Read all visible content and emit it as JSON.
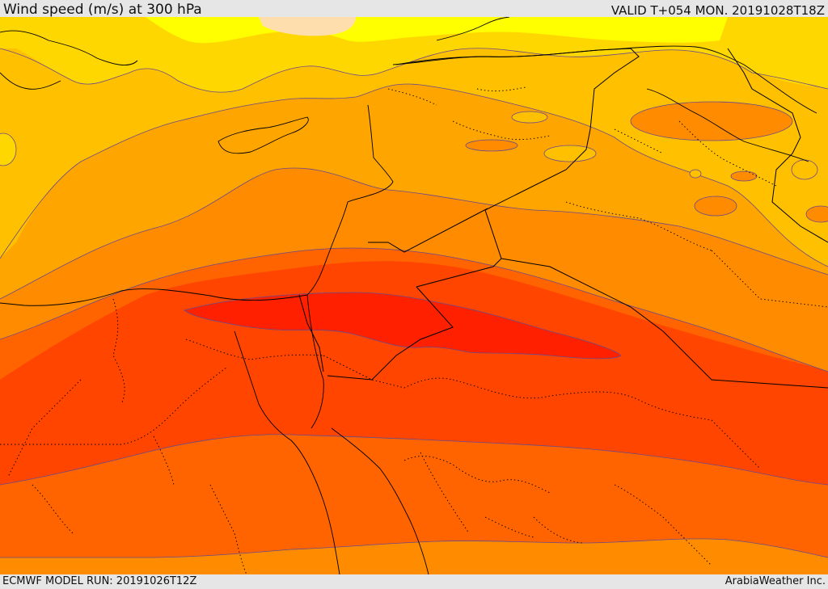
{
  "header": {
    "title": "Wind speed (m/s) at 300 hPa",
    "valid": "VALID T+054 MON. 20191028T18Z"
  },
  "footer": {
    "model_run": "ECMWF MODEL RUN: 20191026T12Z",
    "credit": "ArabiaWeather Inc."
  },
  "colors": {
    "band_pale": "#ffdead",
    "band_yellow": "#ffff00",
    "band_gold": "#ffd700",
    "band_amber": "#ffc000",
    "band_orange_light": "#ffa500",
    "band_orange": "#ff8c00",
    "band_orange_dark": "#ff6400",
    "band_red_orange": "#ff4500",
    "band_red": "#ff2000",
    "contour_line": "#6a4a8a",
    "border_line": "#000000"
  }
}
